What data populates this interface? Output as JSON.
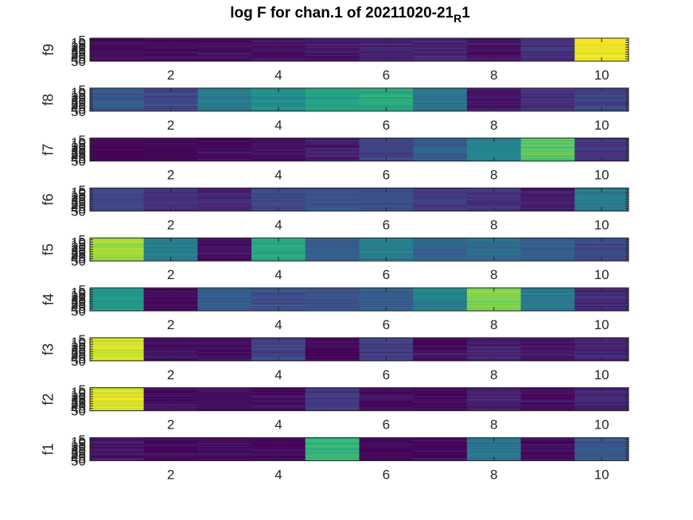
{
  "chart_data": {
    "type": "heatmap",
    "title_parts": {
      "main": "log F for chan.1 of 20211020-21",
      "subscript": "R",
      "suffix": "1"
    },
    "title": "log F for chan.1 of 20211020-21_R1",
    "colormap": "viridis",
    "xlim": [
      0.5,
      10.5
    ],
    "ylim": [
      50,
      1
    ],
    "xticks": [
      2,
      4,
      6,
      8,
      10
    ],
    "yticks": [
      5,
      10,
      15,
      20,
      25,
      30,
      35,
      40,
      45,
      50
    ],
    "grid": false,
    "panels": [
      {
        "name": "f9",
        "values": [
          0.03,
          0.03,
          0.03,
          0.04,
          0.06,
          0.1,
          0.1,
          0.05,
          0.14,
          0.98
        ]
      },
      {
        "name": "f8",
        "values": [
          0.28,
          0.22,
          0.42,
          0.48,
          0.58,
          0.62,
          0.38,
          0.06,
          0.15,
          0.2
        ]
      },
      {
        "name": "f7",
        "values": [
          0.01,
          0.01,
          0.02,
          0.04,
          0.08,
          0.2,
          0.3,
          0.45,
          0.75,
          0.16
        ]
      },
      {
        "name": "f6",
        "values": [
          0.2,
          0.14,
          0.12,
          0.22,
          0.26,
          0.24,
          0.18,
          0.14,
          0.08,
          0.42
        ]
      },
      {
        "name": "f5",
        "values": [
          0.88,
          0.42,
          0.04,
          0.6,
          0.3,
          0.42,
          0.32,
          0.34,
          0.3,
          0.22
        ]
      },
      {
        "name": "f4",
        "values": [
          0.52,
          0.03,
          0.3,
          0.24,
          0.26,
          0.3,
          0.44,
          0.82,
          0.42,
          0.12
        ]
      },
      {
        "name": "f3",
        "values": [
          0.95,
          0.04,
          0.03,
          0.2,
          0.01,
          0.18,
          0.04,
          0.1,
          0.06,
          0.1
        ]
      },
      {
        "name": "f2",
        "values": [
          0.95,
          0.04,
          0.03,
          0.03,
          0.17,
          0.03,
          0.03,
          0.1,
          0.03,
          0.1
        ]
      },
      {
        "name": "f1",
        "values": [
          0.06,
          0.02,
          0.02,
          0.02,
          0.66,
          0.02,
          0.02,
          0.4,
          0.02,
          0.28
        ]
      }
    ]
  }
}
